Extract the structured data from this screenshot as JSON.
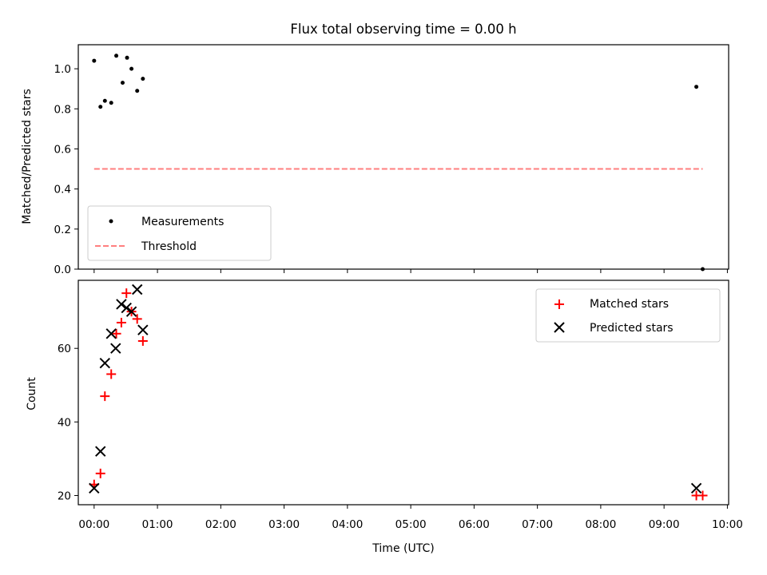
{
  "chart_data": {
    "title": "Flux total observing time = 0.00 h",
    "panels": [
      {
        "type": "scatter",
        "ylabel": "Matched/Predicted stars",
        "xlim": [
          -0.25,
          10.02
        ],
        "ylim": [
          0.0,
          1.12
        ],
        "yticks": [
          0.0,
          0.2,
          0.4,
          0.6,
          0.8,
          1.0
        ],
        "ytick_labels": [
          "0.0",
          "0.2",
          "0.4",
          "0.6",
          "0.8",
          "1.0"
        ],
        "legend_position": "lower-left",
        "series": [
          {
            "name": "Measurements",
            "marker": "dot",
            "color": "#000000",
            "points": [
              [
                0.0,
                1.04
              ],
              [
                0.1,
                0.81
              ],
              [
                0.17,
                0.84
              ],
              [
                0.27,
                0.83
              ],
              [
                0.35,
                1.065
              ],
              [
                0.45,
                0.93
              ],
              [
                0.52,
                1.055
              ],
              [
                0.59,
                1.0
              ],
              [
                0.68,
                0.89
              ],
              [
                0.77,
                0.95
              ],
              [
                9.51,
                0.91
              ],
              [
                9.61,
                0.0
              ]
            ]
          },
          {
            "name": "Threshold",
            "marker": "dashed-line",
            "color": "#ff7f7f",
            "points": [
              [
                0.0,
                0.5
              ],
              [
                9.61,
                0.5
              ]
            ]
          }
        ]
      },
      {
        "type": "scatter",
        "ylabel": "Count",
        "xlabel": "Time (UTC)",
        "xlim": [
          -0.25,
          10.02
        ],
        "ylim": [
          17.5,
          78.5
        ],
        "yticks": [
          20,
          40,
          60
        ],
        "ytick_labels": [
          "20",
          "40",
          "60"
        ],
        "xticks": [
          0,
          1,
          2,
          3,
          4,
          5,
          6,
          7,
          8,
          9,
          10
        ],
        "xtick_labels": [
          "00:00",
          "01:00",
          "02:00",
          "03:00",
          "04:00",
          "05:00",
          "06:00",
          "07:00",
          "08:00",
          "09:00",
          "10:00"
        ],
        "legend_position": "upper-right",
        "series": [
          {
            "name": "Matched stars",
            "marker": "plus",
            "color": "#ff0000",
            "points": [
              [
                0.0,
                23
              ],
              [
                0.1,
                26
              ],
              [
                0.17,
                47
              ],
              [
                0.27,
                53
              ],
              [
                0.35,
                64
              ],
              [
                0.43,
                67
              ],
              [
                0.51,
                75
              ],
              [
                0.59,
                70
              ],
              [
                0.68,
                68
              ],
              [
                0.77,
                62
              ],
              [
                9.51,
                20
              ],
              [
                9.61,
                20
              ]
            ]
          },
          {
            "name": "Predicted stars",
            "marker": "x",
            "color": "#000000",
            "points": [
              [
                0.0,
                22
              ],
              [
                0.1,
                32
              ],
              [
                0.17,
                56
              ],
              [
                0.27,
                64
              ],
              [
                0.34,
                60
              ],
              [
                0.43,
                72
              ],
              [
                0.51,
                71
              ],
              [
                0.59,
                70
              ],
              [
                0.68,
                76
              ],
              [
                0.77,
                65
              ],
              [
                9.51,
                22
              ]
            ]
          }
        ]
      }
    ]
  }
}
